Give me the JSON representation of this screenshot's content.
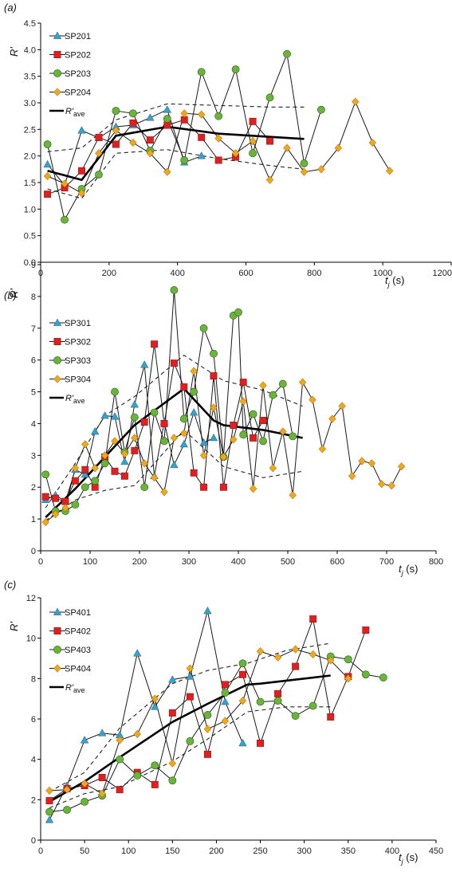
{
  "chart_data": [
    {
      "type": "line",
      "panel_label": "(a)",
      "ylabel": "R'",
      "xlabel": "t_j (s)",
      "xlim": [
        0,
        1200
      ],
      "xticks": [
        0,
        200,
        400,
        600,
        800,
        1000,
        1200
      ],
      "ylim": [
        0,
        4.5
      ],
      "yticks": [
        0.0,
        0.5,
        1.0,
        1.5,
        2.0,
        2.5,
        3.0,
        3.5,
        4.0,
        4.5
      ],
      "ytick_decimals": 1,
      "series": [
        {
          "name": "SP201",
          "marker": "triangle",
          "color": "#2aa6d6",
          "x": [
            20,
            70,
            120,
            170,
            220,
            270,
            320,
            370,
            420,
            470
          ],
          "y": [
            1.84,
            1.45,
            2.48,
            2.34,
            2.55,
            2.58,
            2.72,
            2.87,
            1.88,
            2.0
          ]
        },
        {
          "name": "SP202",
          "marker": "square",
          "color": "#e02020",
          "x": [
            20,
            70,
            120,
            170,
            220,
            270,
            320,
            370,
            420,
            470,
            520,
            570,
            620,
            670
          ],
          "y": [
            1.28,
            1.4,
            1.72,
            2.35,
            2.22,
            2.62,
            2.3,
            2.58,
            2.68,
            2.35,
            1.92,
            1.98,
            2.65,
            2.28
          ]
        },
        {
          "name": "SP203",
          "marker": "circle",
          "color": "#6ab43c",
          "x": [
            20,
            70,
            120,
            170,
            220,
            270,
            320,
            370,
            420,
            470,
            520,
            570,
            620,
            670,
            720,
            770,
            820
          ],
          "y": [
            2.22,
            0.8,
            1.38,
            1.65,
            2.85,
            2.8,
            2.1,
            2.7,
            1.92,
            3.58,
            2.75,
            3.63,
            2.05,
            3.1,
            3.92,
            1.86,
            2.87
          ]
        },
        {
          "name": "SP204",
          "marker": "diamond",
          "color": "#f0a818",
          "x": [
            20,
            70,
            120,
            170,
            220,
            270,
            320,
            370,
            420,
            470,
            520,
            570,
            620,
            670,
            720,
            770,
            820,
            870,
            920,
            970,
            1020
          ],
          "y": [
            1.62,
            1.48,
            1.3,
            2.05,
            2.48,
            2.25,
            2.05,
            1.7,
            2.8,
            2.78,
            2.33,
            2.05,
            2.28,
            1.55,
            2.15,
            1.7,
            1.75,
            2.15,
            3.02,
            2.25,
            1.72
          ]
        }
      ],
      "average": {
        "label": "R'ave",
        "x": [
          20,
          120,
          220,
          370,
          520,
          670,
          770
        ],
        "y": [
          1.72,
          1.55,
          2.38,
          2.55,
          2.42,
          2.36,
          2.32
        ]
      },
      "bounds_upper": {
        "x": [
          20,
          120,
          220,
          370,
          520,
          670,
          770
        ],
        "y": [
          2.08,
          2.15,
          2.68,
          2.98,
          2.95,
          2.92,
          2.92
        ]
      },
      "bounds_lower": {
        "x": [
          20,
          120,
          220,
          370,
          520,
          670,
          770
        ],
        "y": [
          1.38,
          1.2,
          2.05,
          2.12,
          1.95,
          1.82,
          1.75
        ]
      }
    },
    {
      "type": "line",
      "panel_label": "(b)",
      "ylabel": "R'",
      "xlabel": "t_j (s)",
      "xlim": [
        0,
        800
      ],
      "xticks": [
        0,
        100,
        200,
        300,
        400,
        500,
        600,
        700,
        800
      ],
      "ylim": [
        0,
        9
      ],
      "yticks": [
        0,
        1,
        2,
        3,
        4,
        5,
        6,
        7,
        8,
        9
      ],
      "ytick_decimals": 0,
      "series": [
        {
          "name": "SP301",
          "marker": "triangle",
          "color": "#2aa6d6",
          "x": [
            10,
            30,
            50,
            70,
            90,
            110,
            130,
            150,
            170,
            190,
            210,
            230,
            250,
            270,
            290,
            310,
            330,
            350
          ],
          "y": [
            1.6,
            1.75,
            1.55,
            2.55,
            2.4,
            3.75,
            4.25,
            4.22,
            2.8,
            4.6,
            5.85,
            2.35,
            4.05,
            2.7,
            3.35,
            4.35,
            3.4,
            3.55
          ]
        },
        {
          "name": "SP302",
          "marker": "square",
          "color": "#e02020",
          "x": [
            10,
            30,
            50,
            70,
            90,
            110,
            130,
            150,
            170,
            190,
            210,
            230,
            250,
            270,
            290,
            310,
            330,
            350,
            370,
            390,
            410,
            430,
            450
          ],
          "y": [
            1.7,
            1.65,
            1.55,
            2.2,
            2.55,
            2.0,
            2.95,
            2.5,
            2.35,
            3.15,
            4.05,
            6.5,
            4.0,
            5.9,
            5.15,
            2.45,
            2.0,
            5.5,
            2.0,
            3.95,
            5.3,
            3.55,
            4.1
          ]
        },
        {
          "name": "SP303",
          "marker": "circle",
          "color": "#6ab43c",
          "x": [
            10,
            30,
            50,
            70,
            90,
            110,
            130,
            150,
            170,
            190,
            210,
            230,
            250,
            270,
            290,
            310,
            330,
            350,
            370,
            390,
            400,
            410,
            430,
            450,
            470,
            490,
            510
          ],
          "y": [
            2.4,
            1.25,
            1.25,
            1.45,
            2.0,
            2.2,
            2.75,
            5.0,
            3.1,
            4.2,
            2.0,
            4.35,
            3.45,
            8.2,
            4.15,
            5.0,
            7.0,
            6.2,
            2.95,
            7.4,
            7.5,
            3.65,
            4.3,
            3.45,
            4.9,
            5.25,
            3.6
          ]
        },
        {
          "name": "SP304",
          "marker": "diamond",
          "color": "#f0a818",
          "x": [
            10,
            30,
            50,
            70,
            90,
            110,
            130,
            150,
            170,
            190,
            210,
            230,
            250,
            270,
            290,
            310,
            330,
            350,
            370,
            390,
            410,
            430,
            450,
            470,
            490,
            510,
            530,
            550,
            570,
            590,
            610,
            630,
            650,
            670,
            690,
            710,
            730
          ],
          "y": [
            0.9,
            1.15,
            1.35,
            2.6,
            3.35,
            2.6,
            3.0,
            3.45,
            3.05,
            3.55,
            2.75,
            2.3,
            1.85,
            3.55,
            3.7,
            5.65,
            3.0,
            4.5,
            2.95,
            3.5,
            4.7,
            1.95,
            5.2,
            2.6,
            3.75,
            1.75,
            5.3,
            4.75,
            3.2,
            4.15,
            4.55,
            2.35,
            2.82,
            2.75,
            2.1,
            2.05,
            2.65
          ]
        }
      ],
      "average": {
        "label": "R'ave",
        "x": [
          10,
          70,
          130,
          190,
          290,
          350,
          370,
          450,
          530
        ],
        "y": [
          1.05,
          1.95,
          2.95,
          3.95,
          5.1,
          4.1,
          3.95,
          3.8,
          3.55
        ]
      },
      "bounds_upper": {
        "x": [
          10,
          70,
          130,
          190,
          290,
          370,
          450,
          530
        ],
        "y": [
          1.35,
          2.75,
          4.25,
          4.85,
          6.15,
          5.35,
          5.05,
          4.55
        ]
      },
      "bounds_lower": {
        "x": [
          10,
          70,
          130,
          190,
          290,
          370,
          450,
          530
        ],
        "y": [
          0.95,
          1.6,
          1.9,
          2.05,
          3.8,
          2.65,
          2.3,
          2.5
        ]
      }
    },
    {
      "type": "line",
      "panel_label": "(c)",
      "ylabel": "R'",
      "xlabel": "t_j (s)",
      "xlim": [
        0,
        450
      ],
      "xticks": [
        0,
        50,
        100,
        150,
        200,
        250,
        300,
        350,
        400,
        450
      ],
      "ylim": [
        0,
        12
      ],
      "yticks": [
        0,
        2,
        4,
        6,
        8,
        10,
        12
      ],
      "ytick_decimals": 0,
      "series": [
        {
          "name": "SP401",
          "marker": "triangle",
          "color": "#2aa6d6",
          "x": [
            10,
            30,
            50,
            70,
            90,
            110,
            130,
            150,
            170,
            190,
            210,
            230
          ],
          "y": [
            1.0,
            2.7,
            4.95,
            5.3,
            5.2,
            9.25,
            6.6,
            7.95,
            8.1,
            11.35,
            6.85,
            4.8
          ]
        },
        {
          "name": "SP402",
          "marker": "square",
          "color": "#e02020",
          "x": [
            10,
            30,
            50,
            70,
            90,
            110,
            130,
            150,
            170,
            190,
            210,
            230,
            250,
            270,
            290,
            310,
            330,
            350,
            370
          ],
          "y": [
            1.95,
            2.55,
            2.7,
            3.1,
            2.5,
            3.35,
            2.75,
            6.3,
            7.1,
            4.25,
            7.7,
            8.2,
            4.8,
            7.25,
            8.6,
            10.95,
            6.1,
            8.1,
            10.4
          ]
        },
        {
          "name": "SP403",
          "marker": "circle",
          "color": "#6ab43c",
          "x": [
            10,
            30,
            50,
            70,
            90,
            110,
            130,
            150,
            170,
            190,
            210,
            230,
            250,
            270,
            290,
            310,
            330,
            350,
            370,
            390
          ],
          "y": [
            1.4,
            1.5,
            1.9,
            2.2,
            4.0,
            3.2,
            3.7,
            2.95,
            4.9,
            6.2,
            7.3,
            8.75,
            6.85,
            6.9,
            6.15,
            6.65,
            9.1,
            8.95,
            8.2,
            8.05
          ]
        },
        {
          "name": "SP404",
          "marker": "diamond",
          "color": "#f0a818",
          "x": [
            10,
            30,
            50,
            70,
            90,
            110,
            130,
            150,
            170,
            190,
            210,
            230,
            250,
            270,
            290,
            310,
            330,
            350
          ],
          "y": [
            2.45,
            2.5,
            2.8,
            2.3,
            4.95,
            5.25,
            7.0,
            3.8,
            8.5,
            5.5,
            5.9,
            6.9,
            9.35,
            9.05,
            9.45,
            9.2,
            8.9,
            8.0
          ]
        }
      ],
      "average": {
        "label": "R'ave",
        "x": [
          10,
          50,
          90,
          150,
          190,
          235,
          250,
          330
        ],
        "y": [
          1.9,
          2.9,
          4.1,
          5.85,
          6.75,
          7.7,
          7.75,
          8.15
        ]
      },
      "bounds_upper": {
        "x": [
          10,
          50,
          90,
          150,
          190,
          235,
          280,
          330
        ],
        "y": [
          2.4,
          3.35,
          5.55,
          7.75,
          8.4,
          8.75,
          9.4,
          9.75
        ]
      },
      "bounds_lower": {
        "x": [
          10,
          50,
          90,
          150,
          190,
          235,
          280,
          330
        ],
        "y": [
          1.6,
          2.3,
          2.65,
          3.9,
          5.0,
          6.35,
          6.6,
          6.6
        ]
      }
    }
  ]
}
